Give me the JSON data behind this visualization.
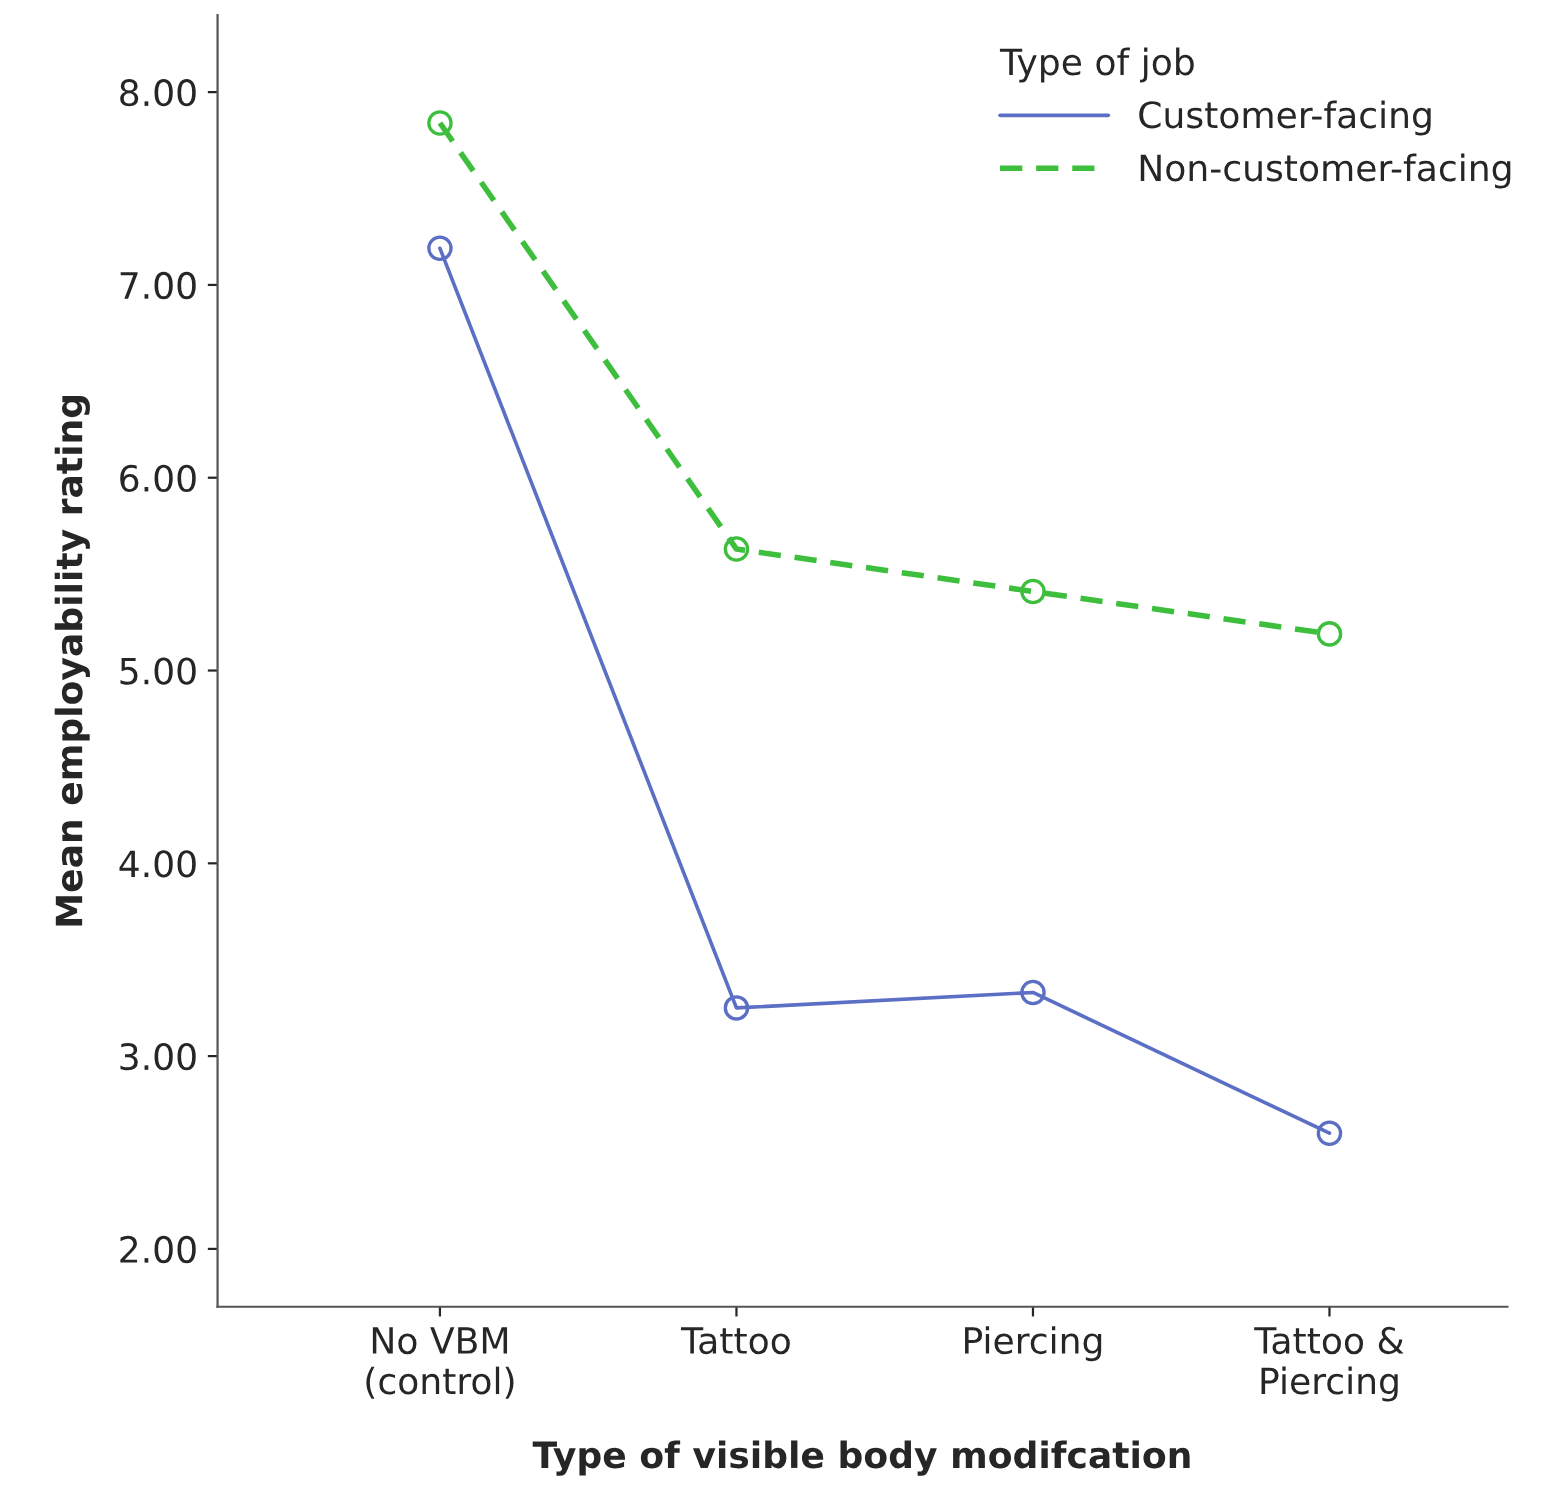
{
  "chart_data": {
    "type": "line",
    "xlabel": "Type of visible body modifcation",
    "ylabel": "Mean employability rating",
    "legend_title": "Type of job",
    "categories": [
      "No VBM\n(control)",
      "Tattoo",
      "Piercing",
      "Tattoo &\nPiercing"
    ],
    "series": [
      {
        "name": "Customer-facing",
        "color": "#5b6fc4",
        "line_style": "solid",
        "values": [
          7.19,
          3.25,
          3.33,
          2.6
        ]
      },
      {
        "name": "Non-customer-facing",
        "color": "#3dbf3d",
        "line_style": "dashed",
        "values": [
          7.84,
          5.63,
          5.41,
          5.19
        ]
      }
    ],
    "ylim": [
      1.7,
      8.4
    ],
    "yticks": [
      {
        "value": 2,
        "label": "2.00"
      },
      {
        "value": 3,
        "label": "3.00"
      },
      {
        "value": 4,
        "label": "4.00"
      },
      {
        "value": 5,
        "label": "5.00"
      },
      {
        "value": 6,
        "label": "6.00"
      },
      {
        "value": 7,
        "label": "7.00"
      },
      {
        "value": 8,
        "label": "8.00"
      }
    ],
    "marker": "circle",
    "legend": "top right",
    "grid": false
  }
}
